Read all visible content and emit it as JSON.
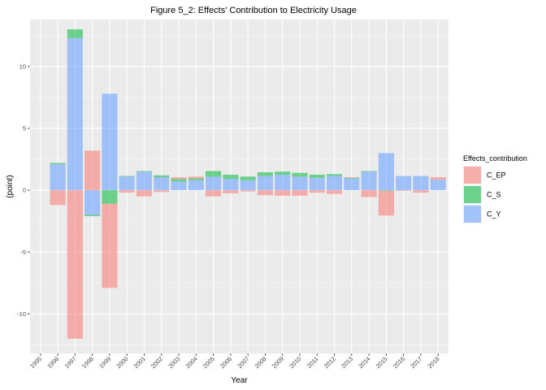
{
  "chart_data": {
    "type": "bar",
    "stacked": "diverging",
    "title": "Figure 5_2: Effects' Contribution to Electricity Usage",
    "xlabel": "Year",
    "ylabel": "(point)",
    "ylim": [
      -13.2,
      13.8
    ],
    "yticks": [
      -10,
      -5,
      0,
      5,
      10
    ],
    "ytick_labels": [
      "-10",
      "-5",
      "0",
      "5",
      "10"
    ],
    "categories": [
      "1995",
      "1996",
      "1997",
      "1998",
      "1999",
      "2000",
      "2001",
      "2002",
      "2003",
      "2004",
      "2005",
      "2006",
      "2007",
      "2008",
      "2009",
      "2010",
      "2011",
      "2012",
      "2013",
      "2014",
      "2015",
      "2016",
      "2017",
      "2018"
    ],
    "legend": {
      "title": "Effects_contribution",
      "position": "right"
    },
    "grid": true,
    "series": [
      {
        "name": "C_EP",
        "color": "#F8766D",
        "values": [
          0,
          -1.2,
          -12.0,
          3.2,
          -6.8,
          -0.2,
          -0.5,
          -0.15,
          0.15,
          0.15,
          -0.5,
          -0.25,
          -0.1,
          -0.4,
          -0.45,
          -0.45,
          -0.2,
          -0.3,
          0.05,
          -0.55,
          -2.0,
          -0.05,
          -0.2,
          0.2
        ]
      },
      {
        "name": "C_S",
        "color": "#00BA38",
        "values": [
          0,
          0.1,
          0.7,
          -0.1,
          -1.1,
          0.05,
          0.05,
          0.15,
          0.2,
          0.15,
          0.45,
          0.35,
          0.3,
          0.3,
          0.25,
          0.3,
          0.25,
          0.15,
          0.05,
          0.05,
          -0.05,
          0.0,
          0.0,
          0.0
        ]
      },
      {
        "name": "C_Y",
        "color": "#619CFF",
        "values": [
          0,
          2.1,
          12.3,
          -2.0,
          7.8,
          1.1,
          1.5,
          1.05,
          0.7,
          0.8,
          1.1,
          0.9,
          0.8,
          1.15,
          1.25,
          1.1,
          1.0,
          1.15,
          0.95,
          1.5,
          3.0,
          1.15,
          1.15,
          0.85
        ]
      }
    ]
  }
}
